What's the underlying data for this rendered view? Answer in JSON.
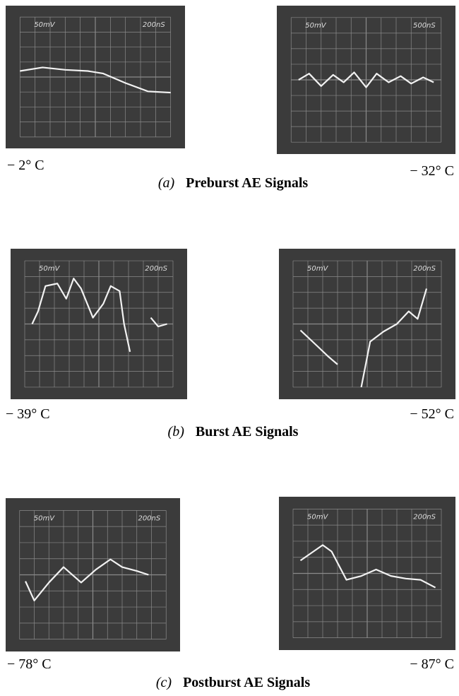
{
  "panels": [
    {
      "label": "(a)",
      "title": "Preburst AE Signals",
      "scopes": [
        {
          "volts": "50mV",
          "time": "200nS",
          "temperature": "− 2° C"
        },
        {
          "volts": "50mV",
          "time": "500nS",
          "temperature": "− 32° C"
        }
      ]
    },
    {
      "label": "(b)",
      "title": "Burst AE Signals",
      "scopes": [
        {
          "volts": "50mV",
          "time": "200nS",
          "temperature": "− 39° C"
        },
        {
          "volts": "50mV",
          "time": "200nS",
          "temperature": "− 52° C"
        }
      ]
    },
    {
      "label": "(c)",
      "title": "Postburst AE Signals",
      "scopes": [
        {
          "volts": "50mV",
          "time": "200nS",
          "temperature": "− 78° C"
        },
        {
          "volts": "50mV",
          "time": "200nS",
          "temperature": "− 87° C"
        }
      ]
    }
  ]
}
